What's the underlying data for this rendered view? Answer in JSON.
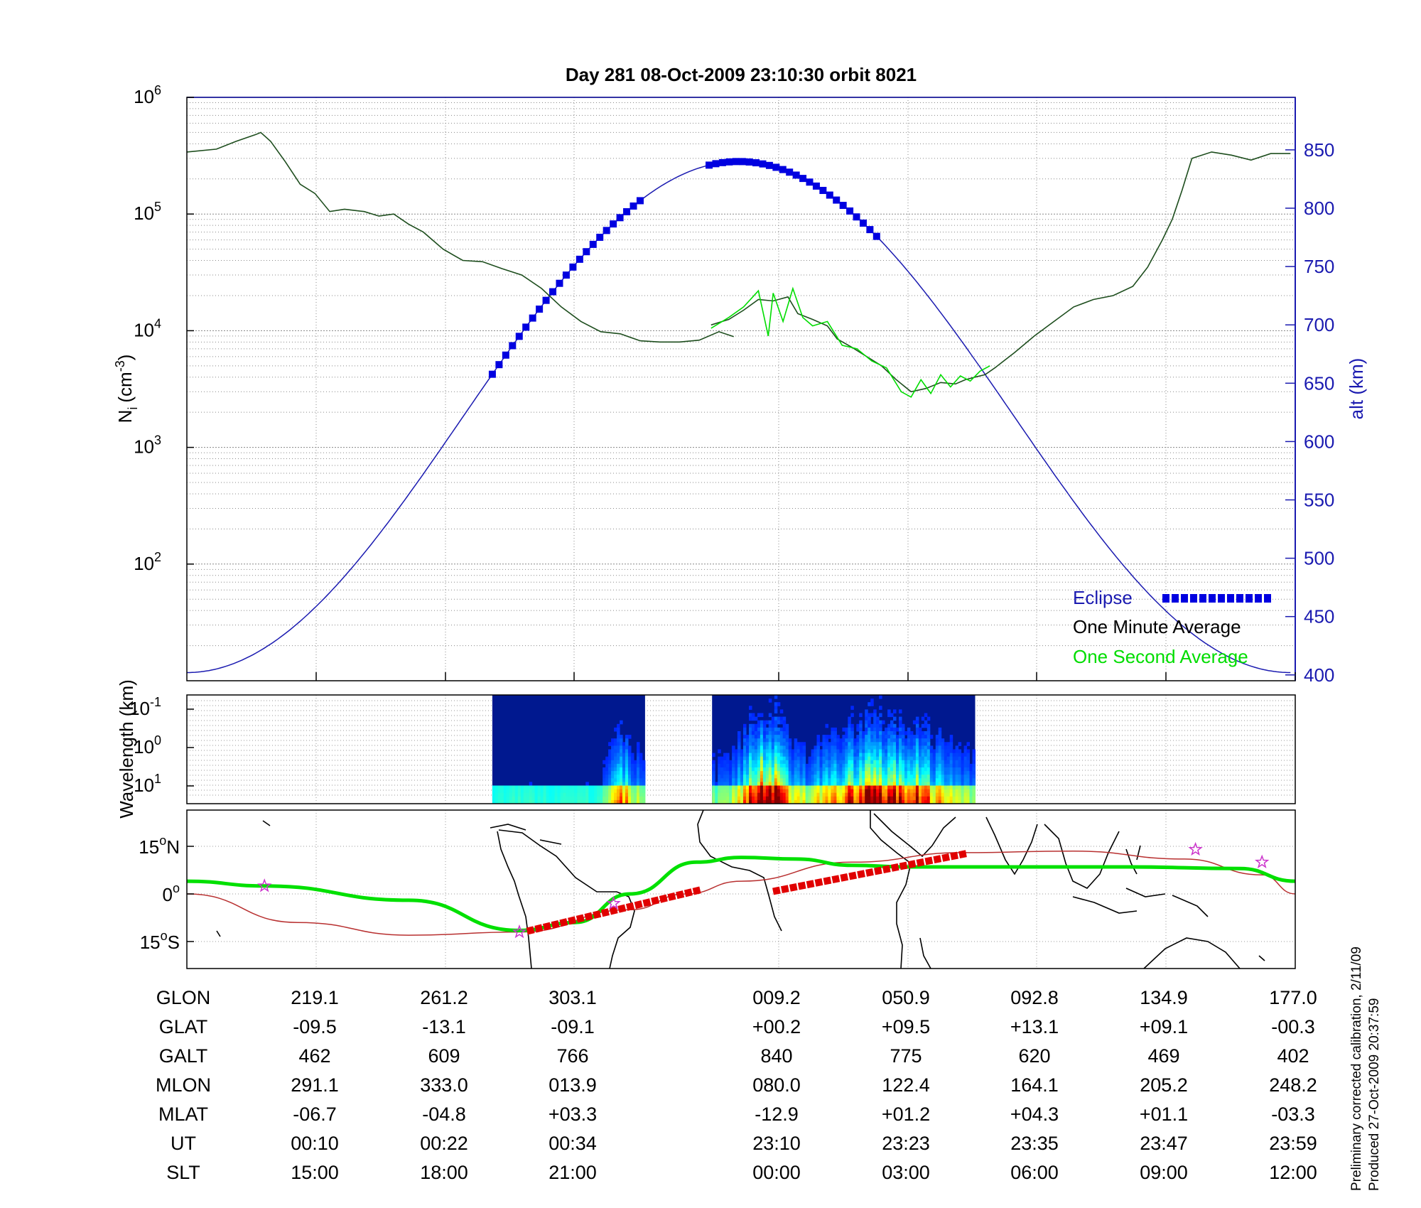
{
  "title": "Day 281  08-Oct-2009 23:10:30   orbit 8021",
  "footnote": {
    "line1": "Preliminary corrected calibration, 2/11/09",
    "line2": "Produced 27-Oct-2009 20:37:59"
  },
  "colors": {
    "eclipse": "#0000e0",
    "altitude": "#1a1ab0",
    "minute_avg": "#1d4d1d",
    "second_avg": "#00dd00",
    "footprint": "#00e000",
    "eclipse_track": "#e00000",
    "projection": "#b83030",
    "stars": "#cc33cc"
  },
  "chart_data": [
    {
      "type": "line",
      "panel": "density",
      "ylabel": "N",
      "ylabel_sub": "i",
      "ylabel_unit_pre": "(cm",
      "ylabel_unit_sup": "-3",
      "ylabel_unit_post": ")",
      "yscale": "log",
      "ylim": [
        10,
        1000000
      ],
      "yticks": [
        {
          "base": "10",
          "exp": "2"
        },
        {
          "base": "10",
          "exp": "3"
        },
        {
          "base": "10",
          "exp": "4"
        },
        {
          "base": "10",
          "exp": "5"
        },
        {
          "base": "10",
          "exp": "6"
        }
      ],
      "y2label": "alt (km)",
      "y2lim": [
        395,
        895
      ],
      "y2ticks": [
        "400",
        "450",
        "500",
        "550",
        "600",
        "650",
        "700",
        "750",
        "800",
        "850"
      ],
      "x_note": "x is fraction of the orbit plot (SLT ticks 15:00 at 0.1167 … 12:00 at 1.0)",
      "legend": {
        "placement": "lower-right",
        "eclipse": "Eclipse",
        "minute": "One Minute Average",
        "second": "One Second Average"
      },
      "series": [
        {
          "name": "One Minute Average",
          "segments": [
            [
              [
                0.0,
                340000
              ],
              [
                0.03,
                360000
              ],
              [
                0.05,
                420000
              ],
              [
                0.07,
                480000
              ],
              [
                0.075,
                500000
              ],
              [
                0.085,
                420000
              ],
              [
                0.1,
                280000
              ],
              [
                0.115,
                180000
              ],
              [
                0.13,
                150000
              ],
              [
                0.145,
                105000
              ],
              [
                0.16,
                110000
              ],
              [
                0.18,
                105000
              ],
              [
                0.195,
                96000
              ],
              [
                0.21,
                100000
              ],
              [
                0.225,
                82000
              ],
              [
                0.24,
                70000
              ],
              [
                0.26,
                50000
              ],
              [
                0.28,
                40000
              ],
              [
                0.3,
                39000
              ],
              [
                0.32,
                34000
              ],
              [
                0.34,
                30000
              ],
              [
                0.36,
                23000
              ],
              [
                0.38,
                16000
              ],
              [
                0.4,
                12000
              ],
              [
                0.42,
                9800
              ],
              [
                0.44,
                9400
              ],
              [
                0.46,
                8200
              ],
              [
                0.48,
                8000
              ],
              [
                0.5,
                8000
              ],
              [
                0.52,
                8300
              ],
              [
                0.54,
                9800
              ],
              [
                0.555,
                8900
              ]
            ],
            [
              [
                0.532,
                11200
              ],
              [
                0.55,
                12500
              ],
              [
                0.565,
                15000
              ],
              [
                0.58,
                18500
              ],
              [
                0.595,
                18000
              ],
              [
                0.61,
                19500
              ],
              [
                0.62,
                14000
              ],
              [
                0.635,
                12500
              ],
              [
                0.65,
                11000
              ],
              [
                0.66,
                8500
              ],
              [
                0.675,
                7200
              ],
              [
                0.69,
                6000
              ],
              [
                0.705,
                5000
              ],
              [
                0.72,
                3800
              ],
              [
                0.735,
                3000
              ],
              [
                0.75,
                3200
              ],
              [
                0.765,
                3600
              ],
              [
                0.78,
                3500
              ],
              [
                0.79,
                3800
              ],
              [
                0.8,
                4000
              ],
              [
                0.81,
                4200
              ],
              [
                0.82,
                4800
              ],
              [
                0.84,
                6500
              ],
              [
                0.86,
                9000
              ],
              [
                0.88,
                12000
              ],
              [
                0.9,
                16000
              ],
              [
                0.92,
                18500
              ],
              [
                0.94,
                20000
              ],
              [
                0.96,
                24000
              ],
              [
                0.975,
                35000
              ],
              [
                0.99,
                60000
              ],
              [
                1.0,
                90000
              ]
            ],
            [
              [
                1.0,
                90000
              ],
              [
                1.01,
                160000
              ],
              [
                1.02,
                300000
              ],
              [
                1.04,
                340000
              ],
              [
                1.06,
                320000
              ],
              [
                1.08,
                290000
              ],
              [
                1.1,
                330000
              ],
              [
                1.12,
                330000
              ]
            ]
          ]
        },
        {
          "name": "One Second Average",
          "segments": [
            [
              [
                0.532,
                10500
              ],
              [
                0.55,
                13000
              ],
              [
                0.565,
                16000
              ],
              [
                0.58,
                22000
              ],
              [
                0.59,
                9000
              ],
              [
                0.595,
                21000
              ],
              [
                0.605,
                12000
              ],
              [
                0.615,
                23000
              ],
              [
                0.625,
                13000
              ],
              [
                0.635,
                11000
              ],
              [
                0.65,
                12000
              ],
              [
                0.665,
                7500
              ],
              [
                0.68,
                7000
              ],
              [
                0.695,
                5500
              ],
              [
                0.71,
                4800
              ],
              [
                0.725,
                3000
              ],
              [
                0.735,
                2700
              ],
              [
                0.745,
                3800
              ],
              [
                0.755,
                2900
              ],
              [
                0.765,
                4200
              ],
              [
                0.775,
                3300
              ],
              [
                0.785,
                4100
              ],
              [
                0.795,
                3700
              ],
              [
                0.805,
                4500
              ],
              [
                0.815,
                5000
              ]
            ]
          ]
        }
      ],
      "altitude_curve": {
        "name": "alt (km)",
        "x_start": 0.0,
        "x_end": 1.12,
        "alt_min": 402,
        "alt_max": 840,
        "x_peak": 0.56
      },
      "eclipse_segments": [
        [
          0.31,
          0.46
        ],
        [
          0.53,
          0.7
        ]
      ]
    },
    {
      "type": "heatmap",
      "panel": "spectrogram",
      "ylabel": "Wavelength (km)",
      "yscale": "log",
      "yticks": [
        {
          "base": "10",
          "exp": "-1"
        },
        {
          "base": "10",
          "exp": "0"
        },
        {
          "base": "10",
          "exp": "1"
        }
      ],
      "blocks": [
        [
          0.31,
          0.465
        ],
        [
          0.533,
          0.8
        ]
      ]
    },
    {
      "type": "map",
      "panel": "ground-track",
      "yticks": [
        {
          "value": "15",
          "unit": "N"
        },
        {
          "value": "0",
          "unit": ""
        },
        {
          "value": "15",
          "unit": "S"
        }
      ],
      "footprint_track": [
        [
          0.0,
          4
        ],
        [
          0.07,
          2.5
        ],
        [
          0.2,
          -2
        ],
        [
          0.3,
          -11.5
        ],
        [
          0.35,
          -9
        ],
        [
          0.4,
          0
        ],
        [
          0.46,
          10
        ],
        [
          0.5,
          11.5
        ],
        [
          0.55,
          11
        ],
        [
          0.6,
          9
        ],
        [
          0.65,
          8.5
        ],
        [
          0.75,
          8.5
        ],
        [
          0.85,
          8.5
        ],
        [
          0.95,
          8
        ],
        [
          1.0,
          4
        ]
      ],
      "projection_track": [
        [
          0.0,
          0
        ],
        [
          0.1,
          -9
        ],
        [
          0.2,
          -13
        ],
        [
          0.3,
          -12
        ],
        [
          0.4,
          -5
        ],
        [
          0.45,
          0
        ],
        [
          0.5,
          4
        ],
        [
          0.6,
          10
        ],
        [
          0.7,
          13
        ],
        [
          0.8,
          13.5
        ],
        [
          0.9,
          11
        ],
        [
          0.97,
          6
        ],
        [
          1.0,
          0
        ]
      ],
      "eclipse_track_segments": [
        [
          [
            0.31,
            -11.5
          ],
          [
            0.46,
            1
          ]
        ],
        [
          [
            0.532,
            1
          ],
          [
            0.7,
            12.5
          ]
        ]
      ],
      "stars": [
        [
          0.07,
          2.5
        ],
        [
          0.3,
          -12
        ],
        [
          0.385,
          -3
        ],
        [
          0.91,
          14
        ],
        [
          0.97,
          10
        ]
      ]
    }
  ],
  "table": {
    "row_labels": [
      "GLON",
      "GLAT",
      "GALT",
      "MLON",
      "MLAT",
      "UT",
      "SLT"
    ],
    "columns": [
      [
        "219.1",
        "-09.5",
        "462",
        "291.1",
        "-06.7",
        "00:10",
        "15:00"
      ],
      [
        "261.2",
        "-13.1",
        "609",
        "333.0",
        "-04.8",
        "00:22",
        "18:00"
      ],
      [
        "303.1",
        "-09.1",
        "766",
        "013.9",
        "+03.3",
        "00:34",
        "21:00"
      ],
      [
        "009.2",
        "+00.2",
        "840",
        "080.0",
        "-12.9",
        "23:10",
        "00:00"
      ],
      [
        "050.9",
        "+09.5",
        "775",
        "122.4",
        "+01.2",
        "23:23",
        "03:00"
      ],
      [
        "092.8",
        "+13.1",
        "620",
        "164.1",
        "+04.3",
        "23:35",
        "06:00"
      ],
      [
        "134.9",
        "+09.1",
        "469",
        "205.2",
        "+01.1",
        "23:47",
        "09:00"
      ],
      [
        "177.0",
        "-00.3",
        "402",
        "248.2",
        "-03.3",
        "23:59",
        "12:00"
      ]
    ]
  }
}
